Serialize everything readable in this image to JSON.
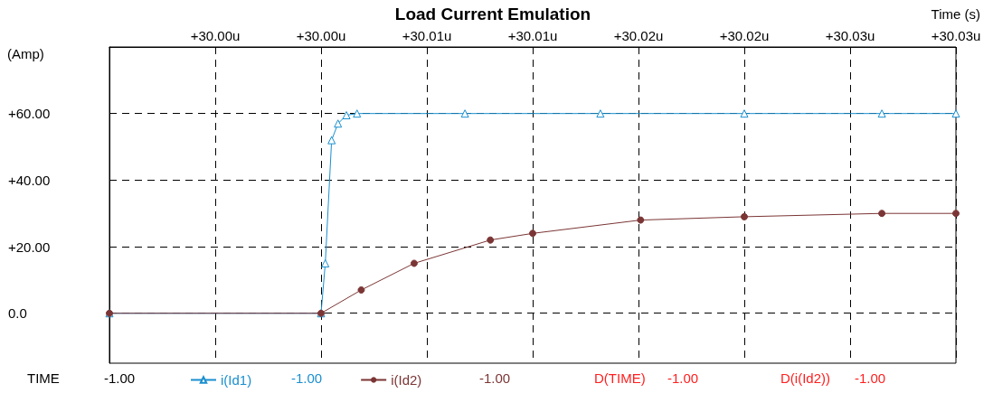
{
  "chart_data": {
    "type": "line",
    "title": "Load Current Emulation",
    "xlabel": "Time (s)",
    "ylabel": "(Amp)",
    "xlim": [
      29.994,
      30.034
    ],
    "xticks": [
      {
        "value": 29.999,
        "label": "+30.00u"
      },
      {
        "value": 30.004,
        "label": "+30.00u"
      },
      {
        "value": 30.009,
        "label": "+30.01u"
      },
      {
        "value": 30.014,
        "label": "+30.01u"
      },
      {
        "value": 30.019,
        "label": "+30.02u"
      },
      {
        "value": 30.024,
        "label": "+30.02u"
      },
      {
        "value": 30.029,
        "label": "+30.03u"
      },
      {
        "value": 30.034,
        "label": "+30.03u"
      }
    ],
    "ylim": [
      -15,
      80
    ],
    "yticks": [
      {
        "value": 0,
        "label": "0.0"
      },
      {
        "value": 20,
        "label": "+20.00"
      },
      {
        "value": 40,
        "label": "+40.00"
      },
      {
        "value": 60,
        "label": "+60.00"
      }
    ],
    "grid": true,
    "legend": "bottom",
    "line_style": "solid",
    "series": [
      {
        "name": "i(Id1)",
        "color": "#1a8fcf",
        "marker": "triangle",
        "x": [
          29.994,
          30.004,
          30.0042,
          30.0045,
          30.0048,
          30.0052,
          30.0057,
          30.0108,
          30.0172,
          30.024,
          30.0305,
          30.034
        ],
        "values": [
          0,
          0,
          15,
          52,
          57,
          59.5,
          60,
          60,
          60,
          60,
          60,
          60
        ]
      },
      {
        "name": "i(Id2)",
        "color": "#7b3535",
        "marker": "circle",
        "x": [
          29.994,
          30.004,
          30.0059,
          30.0084,
          30.012,
          30.014,
          30.0191,
          30.024,
          30.0305,
          30.034
        ],
        "values": [
          0,
          0,
          7,
          15,
          22,
          24,
          28,
          29,
          30,
          30
        ]
      }
    ],
    "annotations": [
      "TIME",
      "-1.00",
      "-1.00",
      "-1.00",
      "D(TIME)",
      "-1.00",
      "D(i(Id2))",
      "-1.00"
    ]
  }
}
